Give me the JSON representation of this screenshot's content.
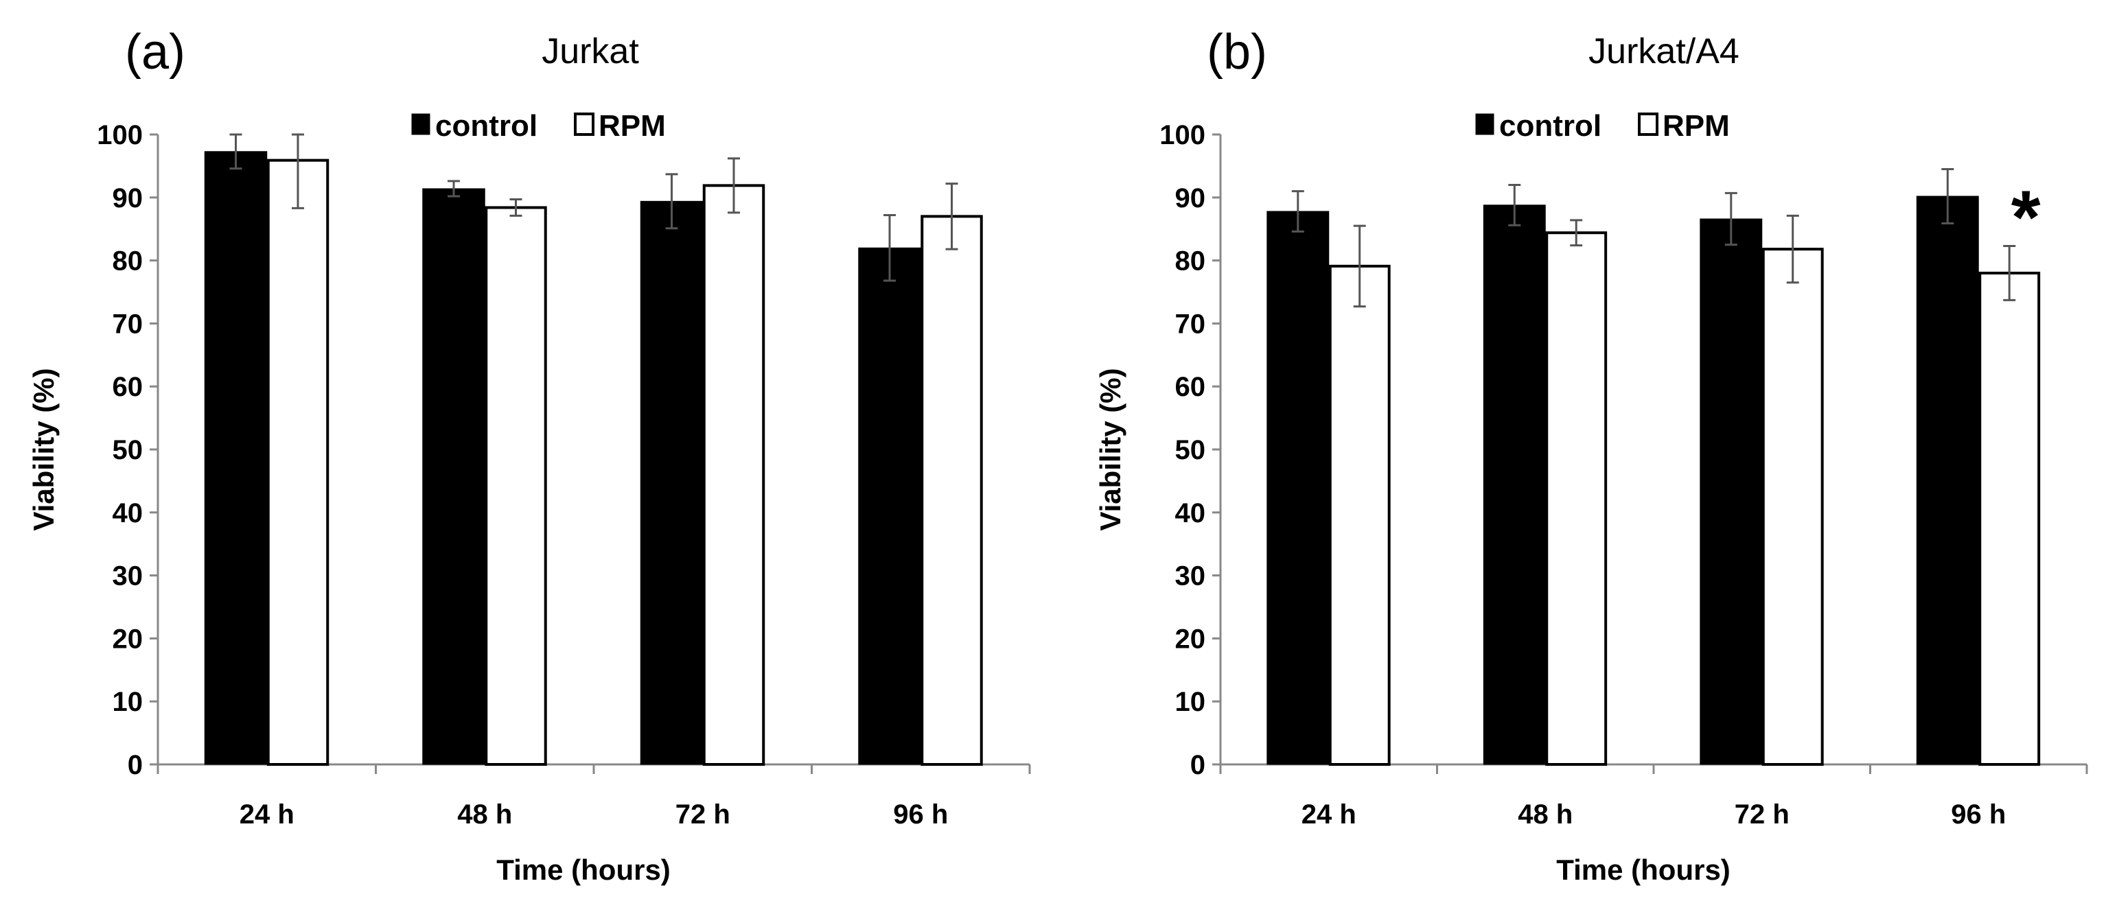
{
  "chart_data": [
    {
      "type": "bar",
      "panel_label": "(a)",
      "title": "Jurkat",
      "categories": [
        "24 h",
        "48 h",
        "72 h",
        "96 h"
      ],
      "series": [
        {
          "name": "control",
          "color": "#000000",
          "values": [
            97.3,
            91.4,
            89.4,
            82.0
          ],
          "errors": [
            2.7,
            1.2,
            4.3,
            5.2
          ]
        },
        {
          "name": "RPM",
          "color": "#ffffff",
          "values": [
            95.9,
            88.4,
            91.9,
            87.0
          ],
          "errors": [
            7.6,
            1.3,
            4.3,
            5.2
          ]
        }
      ],
      "xlabel": "Time (hours)",
      "ylabel": "Viability (%)",
      "ylim": [
        0,
        100
      ],
      "yticks": [
        0,
        10,
        20,
        30,
        40,
        50,
        60,
        70,
        80,
        90,
        100
      ],
      "legend_position": "top-center",
      "annotations": []
    },
    {
      "type": "bar",
      "panel_label": "(b)",
      "title": "Jurkat/A4",
      "categories": [
        "24 h",
        "48 h",
        "72 h",
        "96 h"
      ],
      "series": [
        {
          "name": "control",
          "color": "#000000",
          "values": [
            87.8,
            88.8,
            86.6,
            90.2
          ],
          "errors": [
            3.2,
            3.2,
            4.1,
            4.3
          ]
        },
        {
          "name": "RPM",
          "color": "#ffffff",
          "values": [
            79.1,
            84.4,
            81.8,
            78.0
          ],
          "errors": [
            6.4,
            2.0,
            5.3,
            4.3
          ]
        }
      ],
      "xlabel": "Time (hours)",
      "ylabel": "Viability (%)",
      "ylim": [
        0,
        100
      ],
      "yticks": [
        0,
        10,
        20,
        30,
        40,
        50,
        60,
        70,
        80,
        90,
        100
      ],
      "legend_position": "top-center",
      "annotations": [
        {
          "text": "*",
          "category": "96 h",
          "series": "RPM"
        }
      ]
    }
  ]
}
